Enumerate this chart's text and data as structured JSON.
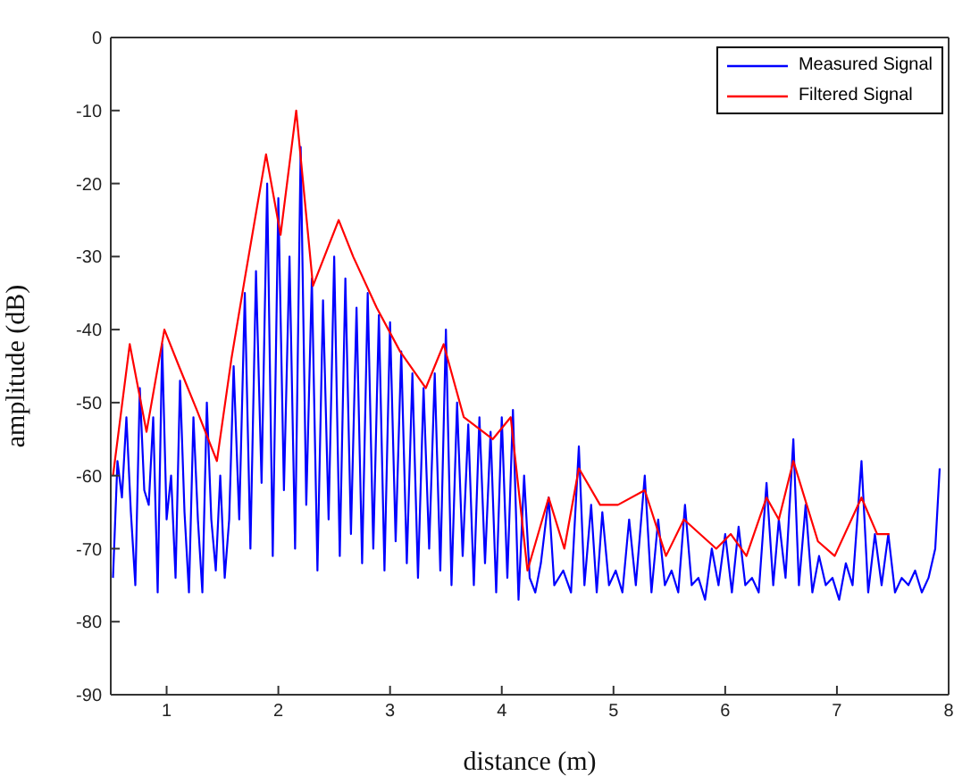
{
  "chart_data": {
    "type": "line",
    "xlabel": "distance (m)",
    "ylabel": "amplitude (dB)",
    "xlim": [
      0.5,
      8
    ],
    "xticks": [
      1,
      2,
      3,
      4,
      5,
      6,
      7,
      8
    ],
    "ylim": [
      -90,
      0
    ],
    "yticks": [
      -90,
      -80,
      -70,
      -60,
      -50,
      -40,
      -30,
      -20,
      -10,
      0
    ],
    "legend": "top right",
    "marker": "none",
    "line_style": "solid",
    "series": [
      {
        "name": "Measured Signal",
        "color": "#0000ff",
        "x": [
          0.52,
          0.56,
          0.6,
          0.64,
          0.68,
          0.72,
          0.76,
          0.8,
          0.84,
          0.88,
          0.92,
          0.96,
          1,
          1.04,
          1.08,
          1.12,
          1.16,
          1.2,
          1.24,
          1.28,
          1.32,
          1.36,
          1.4,
          1.44,
          1.48,
          1.52,
          1.56,
          1.6,
          1.65,
          1.7,
          1.75,
          1.8,
          1.85,
          1.9,
          1.95,
          2,
          2.05,
          2.1,
          2.15,
          2.2,
          2.25,
          2.3,
          2.35,
          2.4,
          2.45,
          2.5,
          2.55,
          2.6,
          2.65,
          2.7,
          2.75,
          2.8,
          2.85,
          2.9,
          2.95,
          3,
          3.05,
          3.1,
          3.15,
          3.2,
          3.25,
          3.3,
          3.35,
          3.4,
          3.45,
          3.5,
          3.55,
          3.6,
          3.65,
          3.7,
          3.75,
          3.8,
          3.85,
          3.9,
          3.95,
          4,
          4.05,
          4.1,
          4.15,
          4.2,
          4.25,
          4.3,
          4.35,
          4.42,
          4.47,
          4.55,
          4.62,
          4.69,
          4.74,
          4.8,
          4.85,
          4.9,
          4.96,
          5.02,
          5.08,
          5.14,
          5.2,
          5.28,
          5.34,
          5.4,
          5.46,
          5.52,
          5.58,
          5.64,
          5.7,
          5.76,
          5.82,
          5.88,
          5.94,
          6,
          6.06,
          6.12,
          6.18,
          6.24,
          6.3,
          6.37,
          6.43,
          6.48,
          6.54,
          6.61,
          6.66,
          6.72,
          6.78,
          6.84,
          6.9,
          6.96,
          7.02,
          7.08,
          7.14,
          7.22,
          7.28,
          7.34,
          7.4,
          7.46,
          7.52,
          7.58,
          7.64,
          7.7,
          7.76,
          7.82,
          7.88,
          7.92
        ],
        "values": [
          -74,
          -58,
          -63,
          -52,
          -65,
          -75,
          -48,
          -62,
          -64,
          -52,
          -76,
          -42,
          -66,
          -60,
          -74,
          -47,
          -65,
          -76,
          -52,
          -66,
          -76,
          -50,
          -66,
          -73,
          -60,
          -74,
          -66,
          -45,
          -66,
          -35,
          -70,
          -32,
          -61,
          -20,
          -71,
          -22,
          -62,
          -30,
          -70,
          -15,
          -64,
          -33,
          -73,
          -36,
          -66,
          -30,
          -71,
          -33,
          -68,
          -37,
          -72,
          -35,
          -70,
          -38,
          -73,
          -39,
          -69,
          -43,
          -72,
          -46,
          -74,
          -48,
          -70,
          -46,
          -73,
          -40,
          -75,
          -50,
          -71,
          -53,
          -75,
          -52,
          -72,
          -54,
          -76,
          -52,
          -74,
          -51,
          -77,
          -60,
          -74,
          -76,
          -72,
          -63,
          -75,
          -73,
          -76,
          -56,
          -75,
          -64,
          -76,
          -65,
          -75,
          -73,
          -76,
          -66,
          -75,
          -60,
          -76,
          -66,
          -75,
          -73,
          -76,
          -64,
          -75,
          -74,
          -77,
          -70,
          -75,
          -68,
          -76,
          -67,
          -75,
          -74,
          -76,
          -61,
          -75,
          -66,
          -74,
          -55,
          -75,
          -64,
          -76,
          -71,
          -75,
          -74,
          -77,
          -72,
          -75,
          -58,
          -76,
          -68,
          -75,
          -68,
          -76,
          -74,
          -75,
          -73,
          -76,
          -74,
          -70,
          -59
        ]
      },
      {
        "name": "Filtered Signal",
        "color": "#ff0000",
        "x": [
          0.52,
          0.67,
          0.82,
          0.98,
          1.11,
          1.27,
          1.45,
          1.58,
          1.7,
          1.89,
          2.02,
          2.16,
          2.31,
          2.54,
          2.67,
          2.88,
          3.09,
          3.32,
          3.48,
          3.66,
          3.92,
          4.08,
          4.23,
          4.42,
          4.56,
          4.69,
          4.88,
          5.04,
          5.28,
          5.47,
          5.63,
          5.92,
          6.05,
          6.19,
          6.37,
          6.48,
          6.61,
          6.83,
          6.98,
          7.22,
          7.36,
          7.47
        ],
        "values": [
          -60,
          -42,
          -54,
          -40,
          -45,
          -51,
          -58,
          -44,
          -33,
          -16,
          -27,
          -10,
          -34,
          -25,
          -30,
          -37,
          -43,
          -48,
          -42,
          -52,
          -55,
          -52,
          -73,
          -63,
          -70,
          -59,
          -64,
          -64,
          -62,
          -71,
          -66,
          -70,
          -68,
          -71,
          -63,
          -66,
          -58,
          -69,
          -71,
          -63,
          -68,
          -68
        ]
      }
    ]
  }
}
